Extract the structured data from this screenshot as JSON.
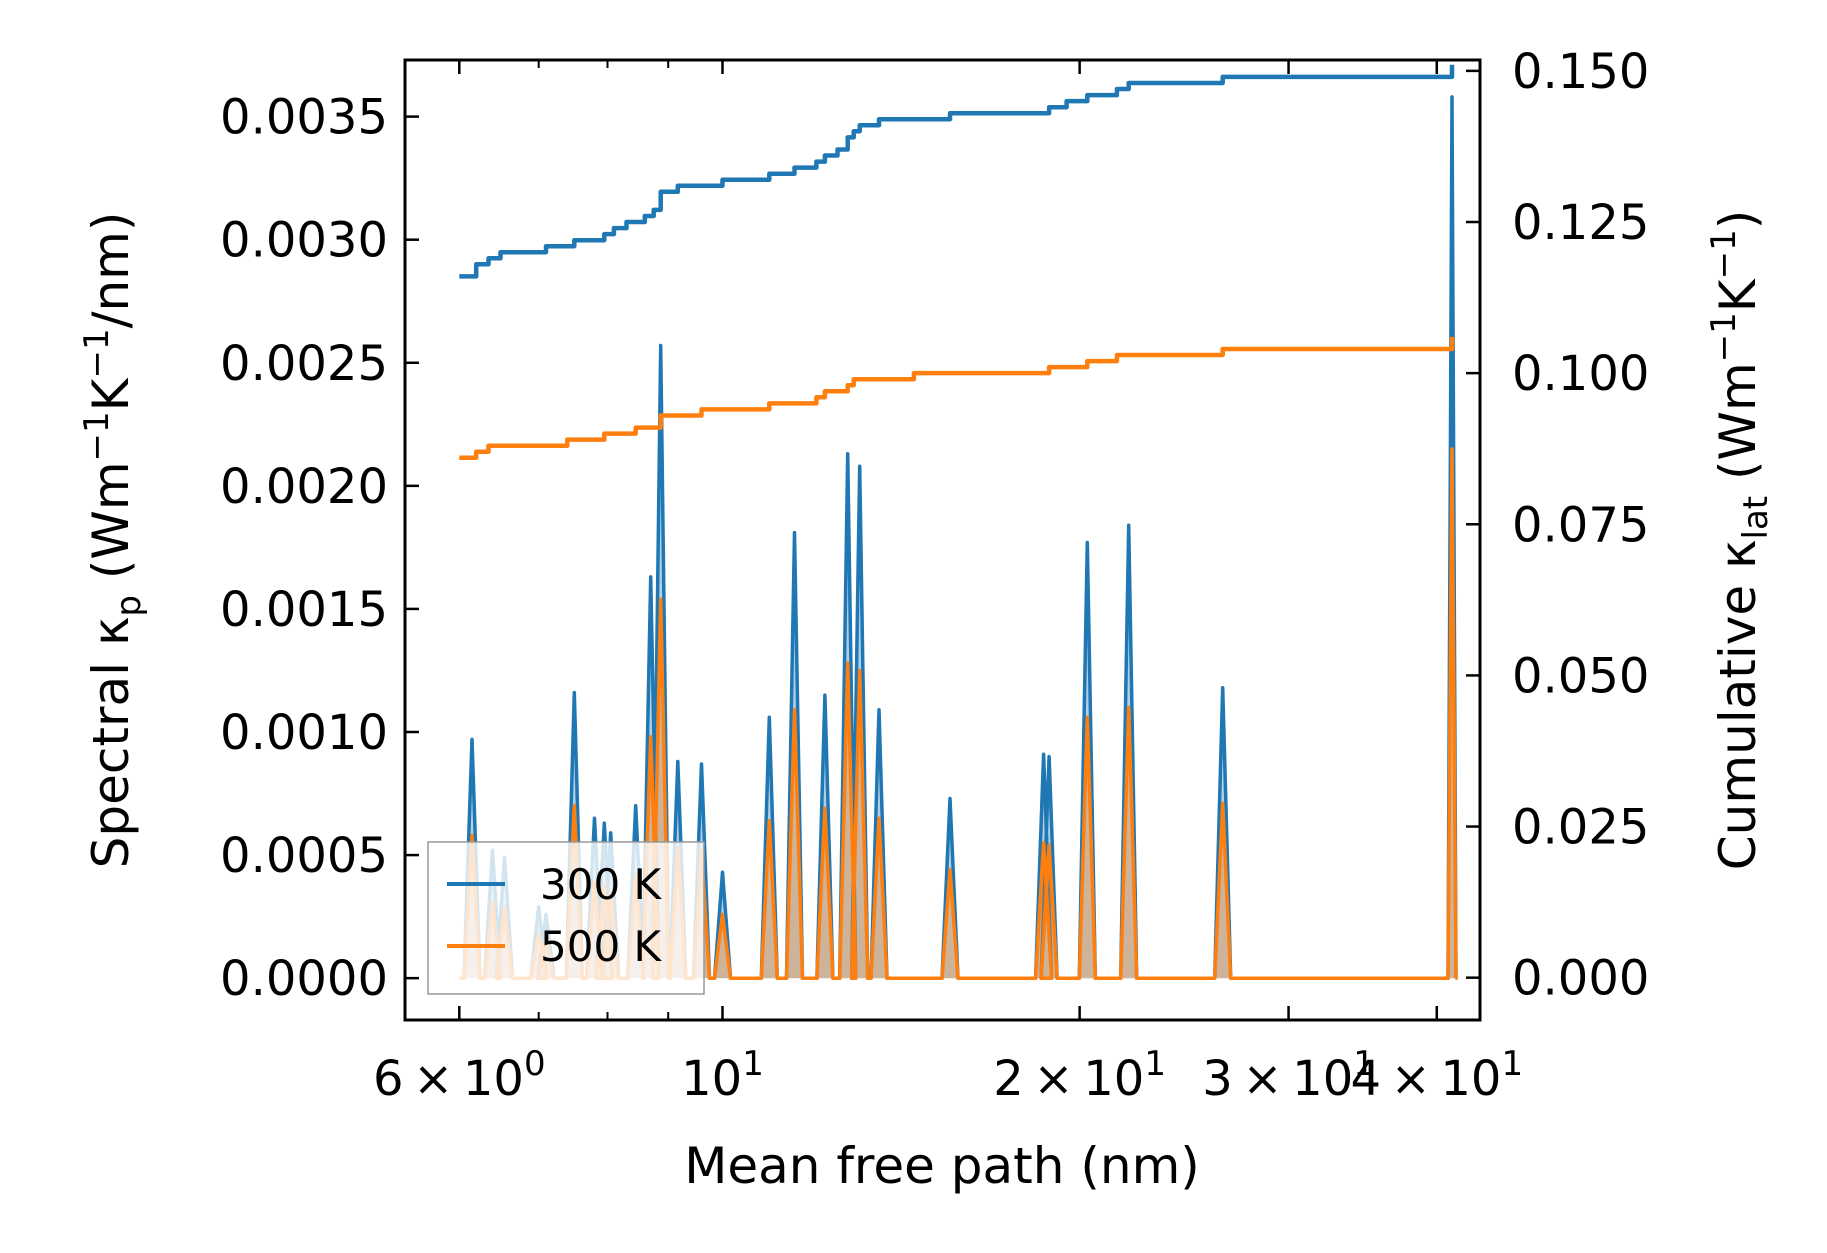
{
  "chart_data": {
    "type": "line",
    "xscale": "log",
    "xlabel": "Mean free path (nm)",
    "ylabel_left": "Spectral κ_p (Wm⁻¹K⁻¹/nm)",
    "ylabel_right": "Cumulative κ_lat (Wm⁻¹K⁻¹)",
    "xlim": [
      5.4,
      43.5
    ],
    "ylim_left": [
      -0.00017,
      0.00373
    ],
    "ylim_right": [
      -0.007,
      0.1518
    ],
    "x_ticks": [
      {
        "value": 6,
        "mantissa": "6",
        "exp": "0"
      },
      {
        "value": 10,
        "mantissa": "",
        "exp": "1"
      },
      {
        "value": 20,
        "mantissa": "2",
        "exp": "1"
      },
      {
        "value": 30,
        "mantissa": "3",
        "exp": "1"
      },
      {
        "value": 40,
        "mantissa": "4",
        "exp": "1"
      }
    ],
    "x_ticks_minor": [
      7,
      8,
      9
    ],
    "y_ticks_left": [
      "0.0000",
      "0.0005",
      "0.0010",
      "0.0015",
      "0.0020",
      "0.0025",
      "0.0030",
      "0.0035"
    ],
    "y_ticks_right": [
      "0.000",
      "0.025",
      "0.050",
      "0.075",
      "0.100",
      "0.125",
      "0.150"
    ],
    "legend": {
      "position": "lower-left",
      "entries": [
        "300 K",
        "500 K"
      ]
    },
    "colors": {
      "300 K": "#1f77b4",
      "500 K": "#ff7f0e"
    },
    "spectral_peaks": [
      {
        "x": 6.15,
        "k300": 0.00097,
        "k500": 0.00058
      },
      {
        "x": 6.4,
        "k300": 0.00052,
        "k500": 0.00031
      },
      {
        "x": 6.55,
        "k300": 0.00049,
        "k500": 0.00029
      },
      {
        "x": 7.0,
        "k300": 0.00029,
        "k500": 0.00018
      },
      {
        "x": 7.1,
        "k300": 0.00026,
        "k500": 0.00016
      },
      {
        "x": 7.5,
        "k300": 0.00116,
        "k500": 0.0007
      },
      {
        "x": 7.8,
        "k300": 0.00065,
        "k500": 0.00039
      },
      {
        "x": 7.95,
        "k300": 0.00063,
        "k500": 0.00038
      },
      {
        "x": 8.05,
        "k300": 0.00059,
        "k500": 0.00035
      },
      {
        "x": 8.45,
        "k300": 0.0007,
        "k500": 0.00042
      },
      {
        "x": 8.7,
        "k300": 0.00163,
        "k500": 0.00098
      },
      {
        "x": 8.87,
        "k300": 0.00257,
        "k500": 0.00154
      },
      {
        "x": 9.17,
        "k300": 0.00088,
        "k500": 0.00053
      },
      {
        "x": 9.6,
        "k300": 0.00087,
        "k500": 0.00052
      },
      {
        "x": 10.0,
        "k300": 0.00043,
        "k500": 0.00026
      },
      {
        "x": 10.95,
        "k300": 0.00106,
        "k500": 0.00064
      },
      {
        "x": 11.5,
        "k300": 0.00181,
        "k500": 0.00109
      },
      {
        "x": 12.2,
        "k300": 0.00115,
        "k500": 0.00069
      },
      {
        "x": 12.75,
        "k300": 0.00213,
        "k500": 0.00128
      },
      {
        "x": 13.05,
        "k300": 0.00208,
        "k500": 0.00125
      },
      {
        "x": 13.55,
        "k300": 0.00109,
        "k500": 0.00065
      },
      {
        "x": 15.55,
        "k300": 0.00073,
        "k500": 0.00044
      },
      {
        "x": 18.65,
        "k300": 0.00091,
        "k500": 0.00055
      },
      {
        "x": 18.85,
        "k300": 0.0009,
        "k500": 0.00054
      },
      {
        "x": 20.3,
        "k300": 0.00177,
        "k500": 0.00106
      },
      {
        "x": 22.0,
        "k300": 0.00184,
        "k500": 0.0011
      },
      {
        "x": 26.4,
        "k300": 0.00118,
        "k500": 0.00071
      },
      {
        "x": 41.2,
        "k300": 0.00358,
        "k500": 0.00215
      }
    ],
    "series": [
      {
        "name": "300 K cumulative",
        "x": [
          6.0,
          6.2,
          6.35,
          6.5,
          6.8,
          7.1,
          7.4,
          7.5,
          7.8,
          7.95,
          8.1,
          8.3,
          8.45,
          8.6,
          8.75,
          8.87,
          9.17,
          9.6,
          10.0,
          10.4,
          10.95,
          11.5,
          12.0,
          12.2,
          12.5,
          12.75,
          12.9,
          13.05,
          13.55,
          14.5,
          15.55,
          17.0,
          18.65,
          18.85,
          19.5,
          20.3,
          21.5,
          22.0,
          24.0,
          26.4,
          30.0,
          35.0,
          40.9,
          41.2
        ],
        "values": [
          0.116,
          0.118,
          0.119,
          0.12,
          0.12,
          0.121,
          0.121,
          0.122,
          0.122,
          0.123,
          0.124,
          0.125,
          0.125,
          0.126,
          0.127,
          0.13,
          0.131,
          0.131,
          0.132,
          0.132,
          0.133,
          0.134,
          0.135,
          0.136,
          0.137,
          0.139,
          0.14,
          0.141,
          0.142,
          0.142,
          0.143,
          0.143,
          0.143,
          0.144,
          0.145,
          0.146,
          0.147,
          0.148,
          0.148,
          0.149,
          0.149,
          0.149,
          0.149,
          0.151
        ]
      },
      {
        "name": "500 K cumulative",
        "x": [
          6.0,
          6.2,
          6.35,
          6.5,
          6.8,
          7.1,
          7.4,
          7.5,
          7.8,
          7.95,
          8.1,
          8.3,
          8.45,
          8.6,
          8.75,
          8.87,
          9.17,
          9.6,
          10.0,
          10.4,
          10.95,
          11.5,
          12.0,
          12.2,
          12.5,
          12.75,
          12.9,
          13.05,
          13.55,
          14.5,
          15.55,
          17.0,
          18.65,
          18.85,
          19.5,
          20.3,
          21.5,
          22.0,
          24.0,
          26.4,
          30.0,
          35.0,
          40.9,
          41.2
        ],
        "values": [
          0.086,
          0.087,
          0.088,
          0.088,
          0.088,
          0.088,
          0.089,
          0.089,
          0.089,
          0.09,
          0.09,
          0.09,
          0.091,
          0.091,
          0.091,
          0.093,
          0.093,
          0.094,
          0.094,
          0.094,
          0.095,
          0.095,
          0.096,
          0.097,
          0.097,
          0.098,
          0.099,
          0.099,
          0.099,
          0.1,
          0.1,
          0.1,
          0.1,
          0.101,
          0.101,
          0.102,
          0.103,
          0.103,
          0.103,
          0.104,
          0.104,
          0.104,
          0.104,
          0.106
        ]
      }
    ]
  }
}
